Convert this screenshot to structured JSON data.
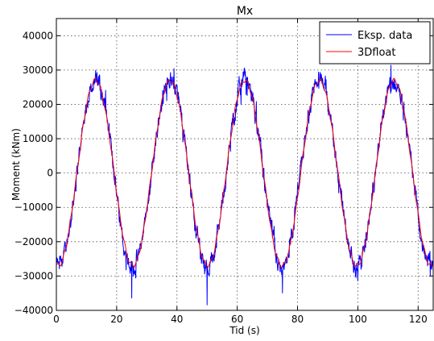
{
  "chart_data": {
    "type": "line",
    "title": "Mx",
    "xlabel": "Tid (s)",
    "ylabel": "Moment (kNm)",
    "xlim": [
      0,
      125
    ],
    "ylim": [
      -40000,
      45000
    ],
    "xticks": [
      0,
      20,
      40,
      60,
      80,
      100,
      120
    ],
    "yticks": [
      -40000,
      -30000,
      -20000,
      -10000,
      0,
      10000,
      20000,
      30000,
      40000
    ],
    "xtick_labels": [
      "0",
      "20",
      "40",
      "60",
      "80",
      "100",
      "120"
    ],
    "ytick_labels": [
      "−40000",
      "−30000",
      "−20000",
      "−10000",
      "0",
      "10000",
      "20000",
      "30000",
      "40000"
    ],
    "grid": true,
    "legend_position": "top-right",
    "series": [
      {
        "name": "Eksp. data",
        "color": "#0000ff",
        "model": {
          "amplitude": 27000,
          "period": 24.75,
          "peak_time": 13.0,
          "noise_amplitude": 3500
        },
        "x_range": [
          0,
          125
        ],
        "peaks_observed": [
          {
            "x": 13,
            "y": 30000
          },
          {
            "x": 39,
            "y": 30500
          },
          {
            "x": 62,
            "y": 29500
          },
          {
            "x": 87,
            "y": 29500
          },
          {
            "x": 111,
            "y": 31500
          }
        ],
        "troughs_observed": [
          {
            "x": 1,
            "y": -28000
          },
          {
            "x": 25,
            "y": -36500
          },
          {
            "x": 50,
            "y": -38500
          },
          {
            "x": 75,
            "y": -35000
          },
          {
            "x": 100,
            "y": -31500
          },
          {
            "x": 124,
            "y": -30000
          }
        ]
      },
      {
        "name": "3Dfloat",
        "color": "#ff0000",
        "model": {
          "amplitude": 27000,
          "period": 24.75,
          "peak_time": 13.0
        },
        "x_range": [
          0,
          125
        ],
        "peaks": [
          {
            "x": 13,
            "y": 26500
          },
          {
            "x": 38,
            "y": 27000
          },
          {
            "x": 62,
            "y": 27000
          },
          {
            "x": 87,
            "y": 27000
          },
          {
            "x": 112,
            "y": 27000
          }
        ],
        "troughs": [
          {
            "x": 25,
            "y": -27000
          },
          {
            "x": 50,
            "y": -27000
          },
          {
            "x": 75,
            "y": -27000
          },
          {
            "x": 100,
            "y": -27000
          }
        ]
      }
    ]
  }
}
